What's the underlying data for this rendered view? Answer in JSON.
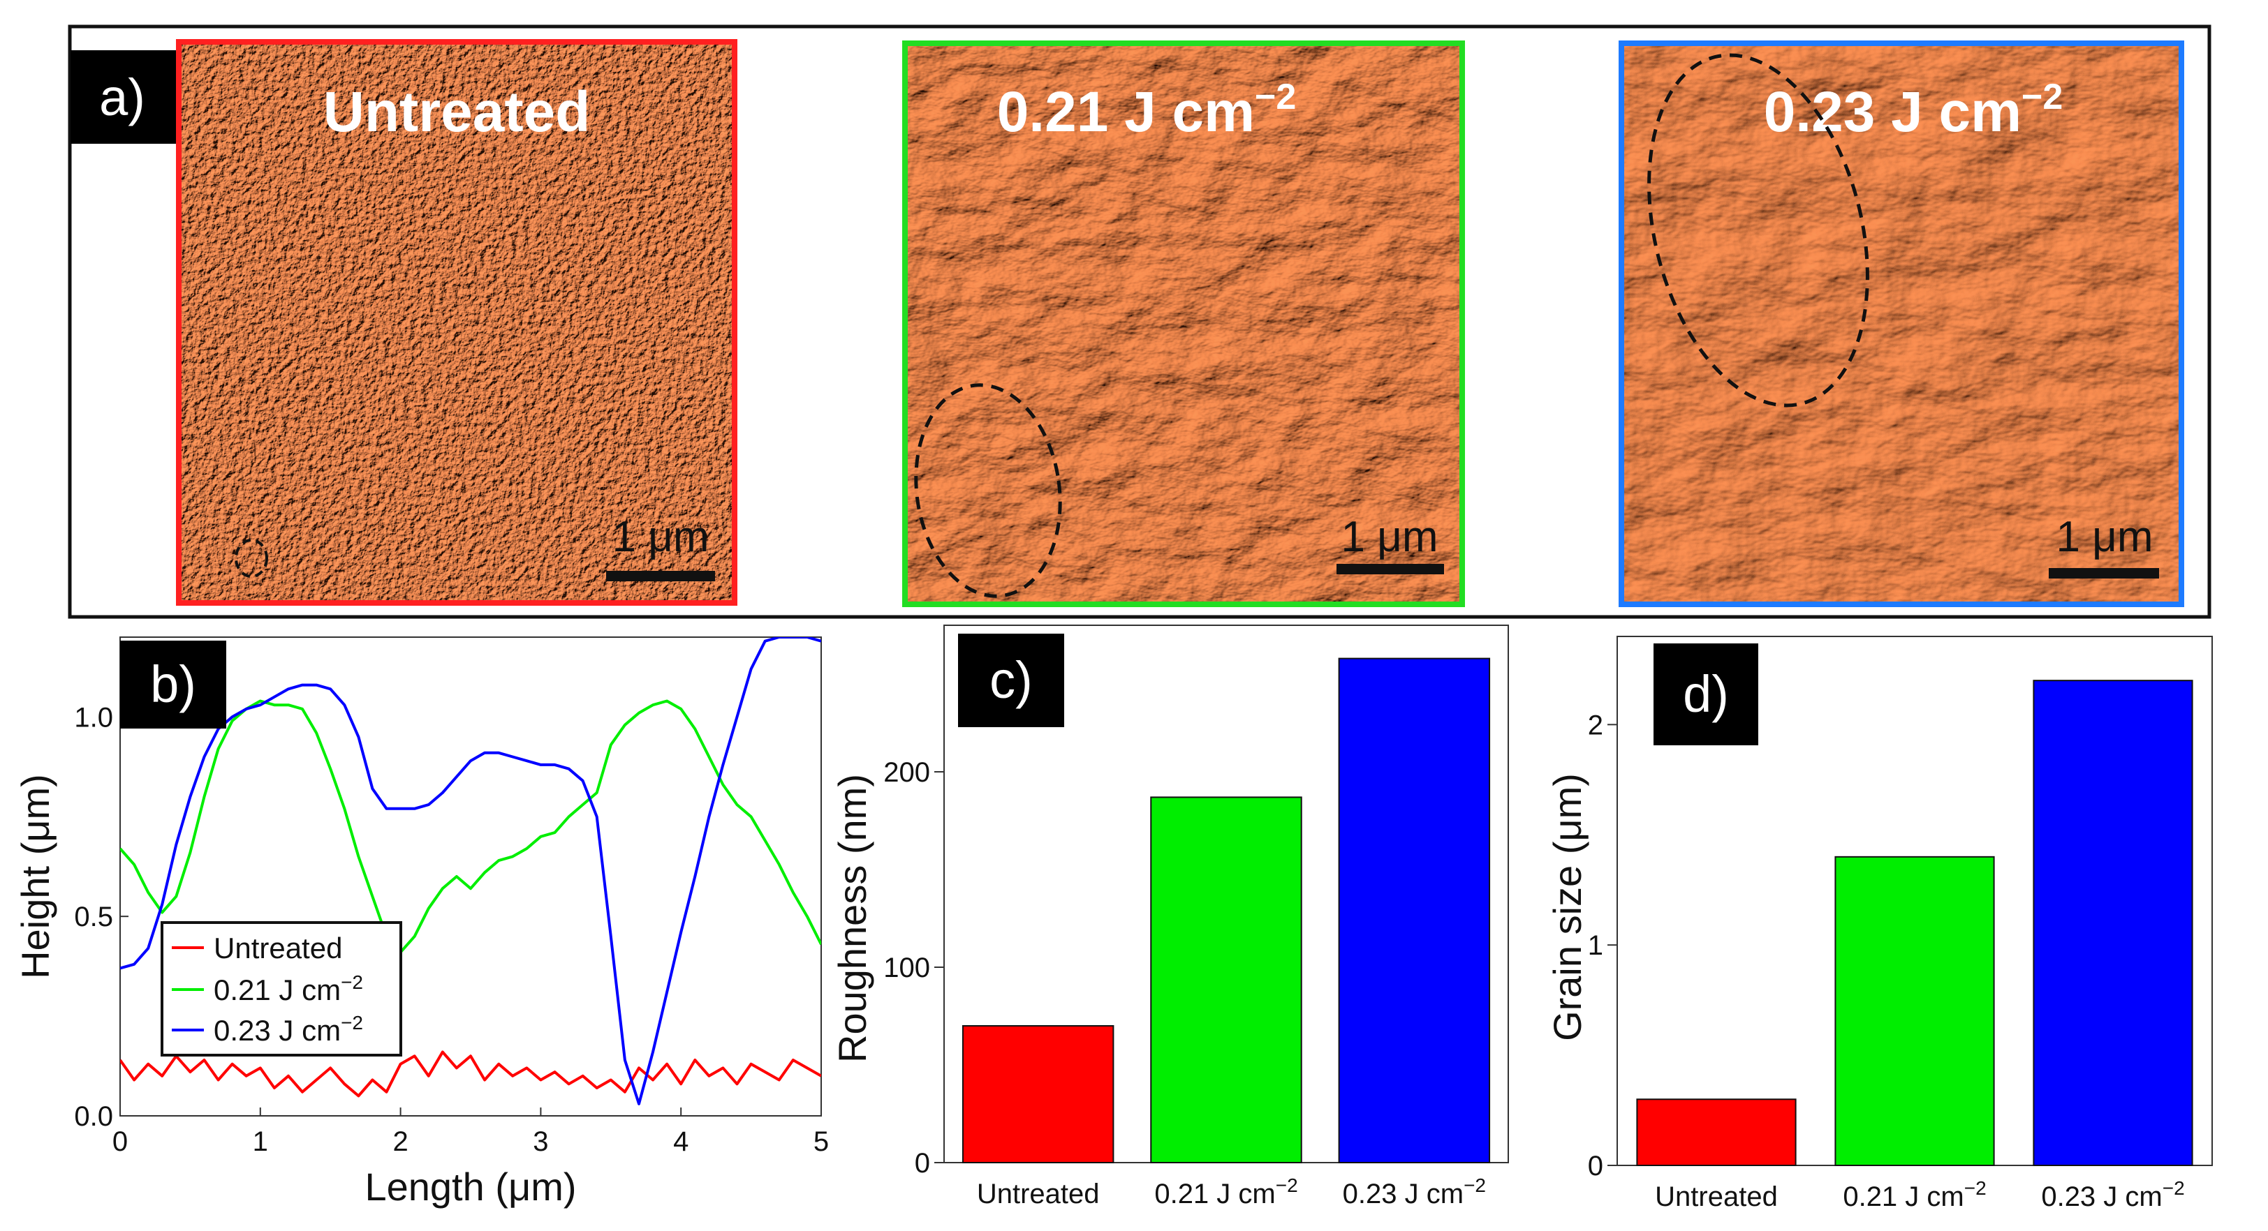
{
  "panel_labels": {
    "a": "a)",
    "b": "b)",
    "c": "c)",
    "d": "d)"
  },
  "colors": {
    "untreated": "#ff0000",
    "j021": "#00ee00",
    "j023": "#0000ff",
    "frame_untreated": "#ff2020",
    "frame_021": "#22dd22",
    "frame_023": "#1e7bff",
    "afm_base": "#e4612b"
  },
  "afm_images": [
    {
      "title": "Untreated",
      "title_sup": "",
      "scale_label": "1 μm"
    },
    {
      "title": "0.21 J cm",
      "title_sup": "−2",
      "scale_label": "1 μm"
    },
    {
      "title": "0.23 J cm",
      "title_sup": "−2",
      "scale_label": "1 μm"
    }
  ],
  "chart_data": [
    {
      "panel": "b",
      "type": "line",
      "xlabel": "Length (μm)",
      "ylabel": "Height (μm)",
      "xlim": [
        0,
        5
      ],
      "ylim": [
        0,
        1.2
      ],
      "xticks": [
        "0",
        "1",
        "2",
        "3",
        "4",
        "5"
      ],
      "yticks": [
        "0.0",
        "0.5",
        "1.0"
      ],
      "legend_position": "lower-left",
      "series": [
        {
          "name": "Untreated",
          "name_sup": "",
          "x": [
            0,
            0.1,
            0.2,
            0.3,
            0.4,
            0.5,
            0.6,
            0.7,
            0.8,
            0.9,
            1.0,
            1.1,
            1.2,
            1.3,
            1.4,
            1.5,
            1.6,
            1.7,
            1.8,
            1.9,
            2.0,
            2.1,
            2.2,
            2.3,
            2.4,
            2.5,
            2.6,
            2.7,
            2.8,
            2.9,
            3.0,
            3.1,
            3.2,
            3.3,
            3.4,
            3.5,
            3.6,
            3.7,
            3.8,
            3.9,
            4.0,
            4.1,
            4.2,
            4.3,
            4.4,
            4.5,
            4.6,
            4.7,
            4.8,
            4.9,
            5.0
          ],
          "y": [
            0.14,
            0.09,
            0.13,
            0.1,
            0.15,
            0.11,
            0.14,
            0.09,
            0.13,
            0.1,
            0.12,
            0.07,
            0.1,
            0.06,
            0.09,
            0.12,
            0.08,
            0.05,
            0.09,
            0.06,
            0.13,
            0.15,
            0.1,
            0.16,
            0.12,
            0.15,
            0.09,
            0.13,
            0.1,
            0.12,
            0.09,
            0.11,
            0.08,
            0.1,
            0.07,
            0.09,
            0.06,
            0.12,
            0.09,
            0.13,
            0.08,
            0.14,
            0.1,
            0.12,
            0.08,
            0.13,
            0.11,
            0.09,
            0.14,
            0.12,
            0.1
          ]
        },
        {
          "name": "0.21 J cm",
          "name_sup": "−2",
          "x": [
            0,
            0.1,
            0.2,
            0.3,
            0.4,
            0.5,
            0.6,
            0.7,
            0.8,
            0.9,
            1.0,
            1.1,
            1.2,
            1.3,
            1.4,
            1.5,
            1.6,
            1.7,
            1.8,
            1.9,
            2.0,
            2.1,
            2.2,
            2.3,
            2.4,
            2.5,
            2.6,
            2.7,
            2.8,
            2.9,
            3.0,
            3.1,
            3.2,
            3.3,
            3.4,
            3.5,
            3.6,
            3.7,
            3.8,
            3.9,
            4.0,
            4.1,
            4.2,
            4.3,
            4.4,
            4.5,
            4.6,
            4.7,
            4.8,
            4.9,
            5.0
          ],
          "y": [
            0.67,
            0.63,
            0.56,
            0.51,
            0.55,
            0.66,
            0.8,
            0.92,
            0.99,
            1.02,
            1.04,
            1.03,
            1.03,
            1.02,
            0.96,
            0.87,
            0.77,
            0.65,
            0.55,
            0.45,
            0.41,
            0.45,
            0.52,
            0.57,
            0.6,
            0.57,
            0.61,
            0.64,
            0.65,
            0.67,
            0.7,
            0.71,
            0.75,
            0.78,
            0.81,
            0.93,
            0.98,
            1.01,
            1.03,
            1.04,
            1.02,
            0.97,
            0.9,
            0.83,
            0.78,
            0.75,
            0.69,
            0.63,
            0.56,
            0.5,
            0.43
          ]
        },
        {
          "name": "0.23 J cm",
          "name_sup": "−2",
          "x": [
            0,
            0.1,
            0.2,
            0.3,
            0.4,
            0.5,
            0.6,
            0.7,
            0.8,
            0.9,
            1.0,
            1.1,
            1.2,
            1.3,
            1.4,
            1.5,
            1.6,
            1.7,
            1.8,
            1.9,
            2.0,
            2.1,
            2.2,
            2.3,
            2.4,
            2.5,
            2.6,
            2.7,
            2.8,
            2.9,
            3.0,
            3.1,
            3.2,
            3.3,
            3.4,
            3.5,
            3.6,
            3.7,
            3.8,
            3.9,
            4.0,
            4.1,
            4.2,
            4.3,
            4.4,
            4.5,
            4.6,
            4.7,
            4.8,
            4.9,
            5.0
          ],
          "y": [
            0.37,
            0.38,
            0.42,
            0.53,
            0.68,
            0.8,
            0.9,
            0.97,
            1.0,
            1.02,
            1.03,
            1.05,
            1.07,
            1.08,
            1.08,
            1.07,
            1.03,
            0.95,
            0.82,
            0.77,
            0.77,
            0.77,
            0.78,
            0.81,
            0.85,
            0.89,
            0.91,
            0.91,
            0.9,
            0.89,
            0.88,
            0.88,
            0.87,
            0.84,
            0.75,
            0.45,
            0.14,
            0.03,
            0.16,
            0.31,
            0.46,
            0.6,
            0.75,
            0.88,
            1.0,
            1.12,
            1.19,
            1.2,
            1.2,
            1.2,
            1.19
          ]
        }
      ]
    },
    {
      "panel": "c",
      "type": "bar",
      "xlabel": "",
      "ylabel": "Roughness (nm)",
      "ylim": [
        0,
        275
      ],
      "yticks": [
        "0",
        "100",
        "200"
      ],
      "categories": [
        "Untreated",
        "0.21 J cm",
        "0.23 J cm"
      ],
      "category_sups": [
        "",
        "−2",
        "−2"
      ],
      "values": [
        70,
        187,
        258
      ]
    },
    {
      "panel": "d",
      "type": "bar",
      "xlabel": "",
      "ylabel": "Grain size (μm)",
      "ylim": [
        0,
        2.4
      ],
      "yticks": [
        "0",
        "1",
        "2"
      ],
      "categories": [
        "Untreated",
        "0.21 J cm",
        "0.23 J cm"
      ],
      "category_sups": [
        "",
        "−2",
        "−2"
      ],
      "values": [
        0.3,
        1.4,
        2.2
      ]
    }
  ]
}
